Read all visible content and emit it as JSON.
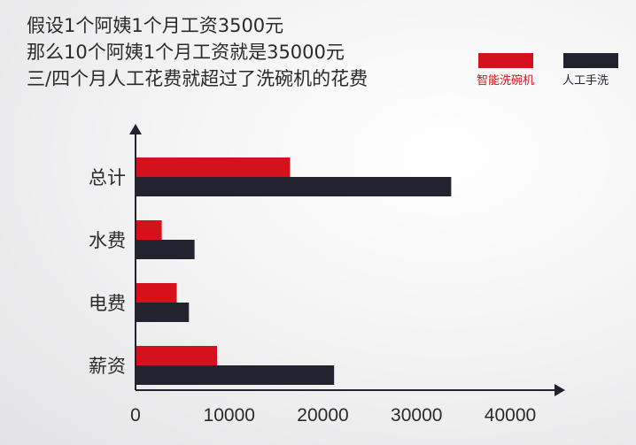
{
  "headline": {
    "line1": "假设1个阿姨1个月工资3500元",
    "line2": "那么10个阿姨1个月工资就是35000元",
    "line3": "三/四个月人工花费就超过了洗碗机的花费"
  },
  "colors": {
    "series_1": "#d5111d",
    "series_2": "#23222f",
    "axis": "#23222f"
  },
  "chart_data": {
    "type": "bar",
    "orientation": "horizontal",
    "categories": [
      "总计",
      "水费",
      "电费",
      "薪资"
    ],
    "series": [
      {
        "name": "智能洗碗机",
        "values": [
          16500,
          2800,
          4400,
          8700
        ]
      },
      {
        "name": "人工手洗",
        "values": [
          33700,
          6300,
          5700,
          21200
        ]
      }
    ],
    "x_ticks": [
      0,
      10000,
      20000,
      30000,
      40000
    ],
    "xlim": [
      0,
      40000
    ],
    "legend_position": "top-right",
    "grid": false
  }
}
